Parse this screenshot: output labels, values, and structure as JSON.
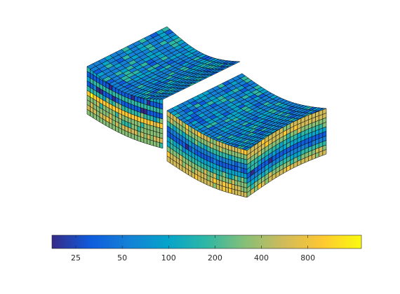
{
  "chart_data": {
    "type": "colorbar",
    "log_scale": true,
    "clim": [
      17.5,
      1780
    ],
    "ticks": [
      25,
      50,
      100,
      200,
      400,
      800
    ],
    "colormap": [
      "#352a87",
      "#0f5cdd",
      "#1481d6",
      "#06a4ca",
      "#2eb7a4",
      "#87bf77",
      "#d1bb59",
      "#fec832",
      "#f9fb0e"
    ]
  }
}
